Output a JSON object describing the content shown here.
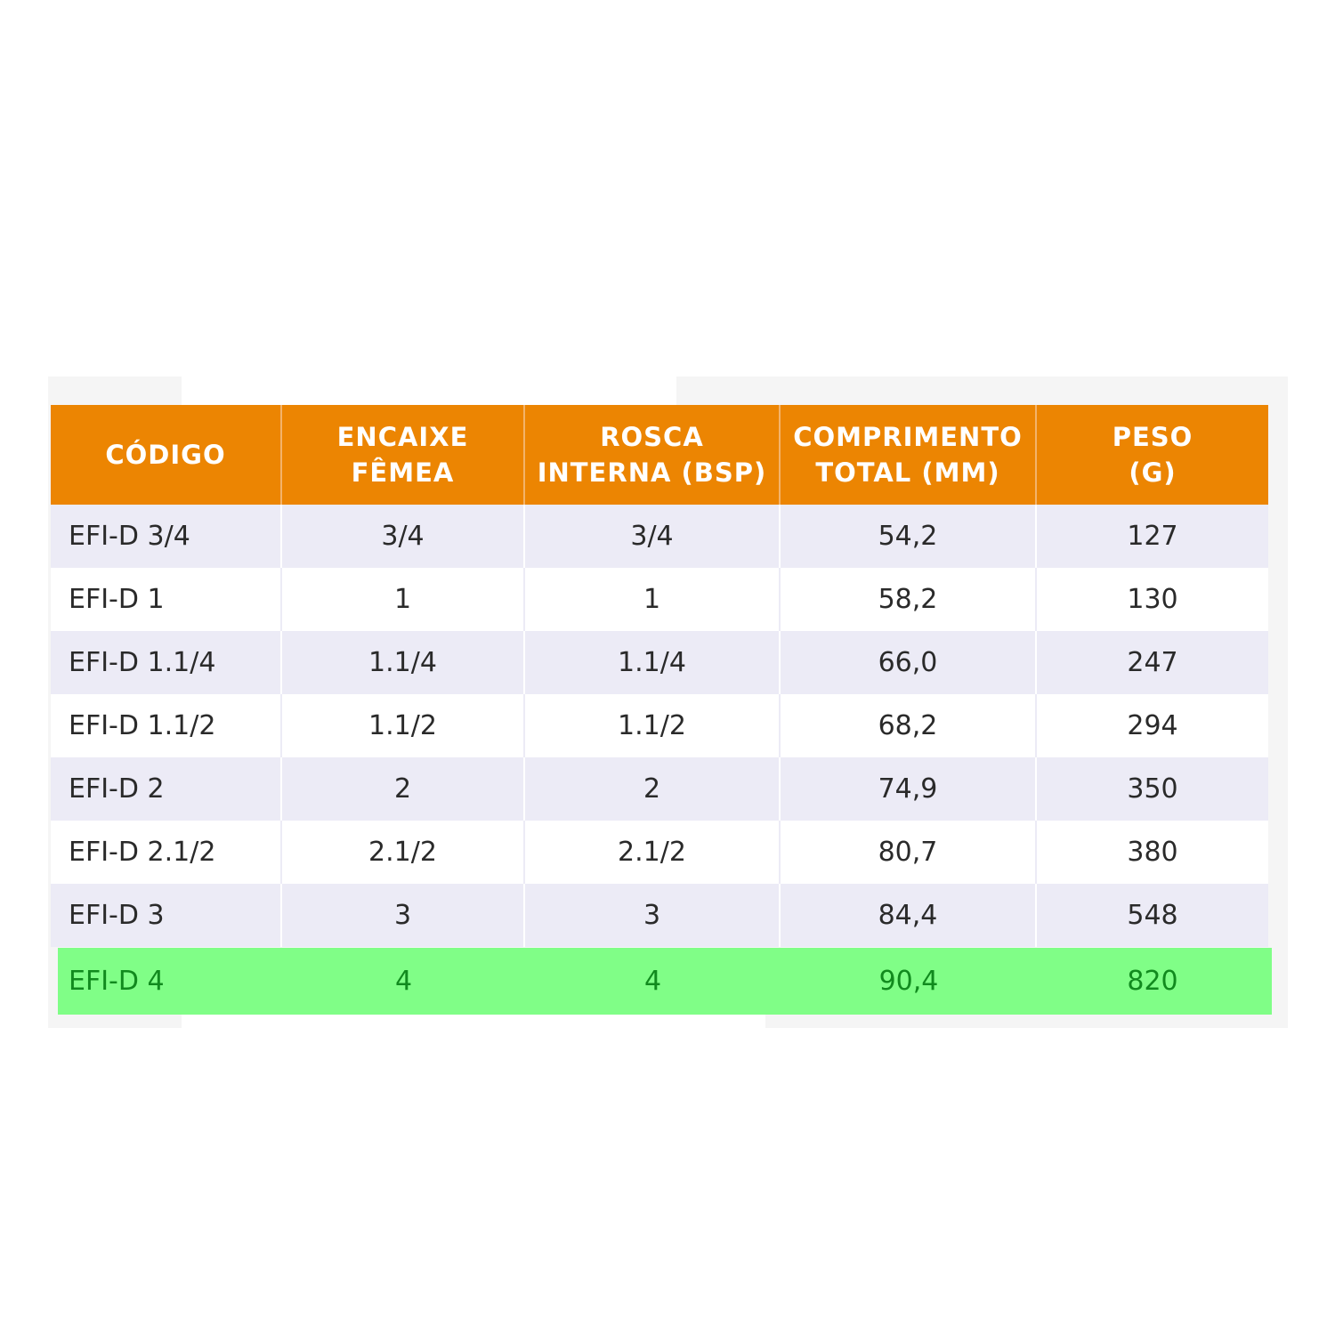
{
  "table": {
    "headers": [
      "CÓDIGO",
      "ENCAIXE\nFÊMEA",
      "ROSCA\nINTERNA (BSP)",
      "COMPRIMENTO\nTOTAL (MM)",
      "PESO\n(G)"
    ],
    "rows": [
      [
        "EFI-D 3/4",
        "3/4",
        "3/4",
        "54,2",
        "127"
      ],
      [
        "EFI-D 1",
        "1",
        "1",
        "58,2",
        "130"
      ],
      [
        "EFI-D 1.1/4",
        "1.1/4",
        "1.1/4",
        "66,0",
        "247"
      ],
      [
        "EFI-D 1.1/2",
        "1.1/2",
        "1.1/2",
        "68,2",
        "294"
      ],
      [
        "EFI-D 2",
        "2",
        "2",
        "74,9",
        "350"
      ],
      [
        "EFI-D 2.1/2",
        "2.1/2",
        "2.1/2",
        "80,7",
        "380"
      ],
      [
        "EFI-D 3",
        "3",
        "3",
        "84,4",
        "548"
      ],
      [
        "EFI-D 4",
        "4",
        "4",
        "90,4",
        "820"
      ]
    ],
    "highlighted_row": 7,
    "colors": {
      "header_bg": "#ec8502",
      "header_text": "#ffffff",
      "stripe_bg": "#ecebf6",
      "highlight_bg": "#80fe87",
      "highlight_text": "#118a1e"
    }
  }
}
